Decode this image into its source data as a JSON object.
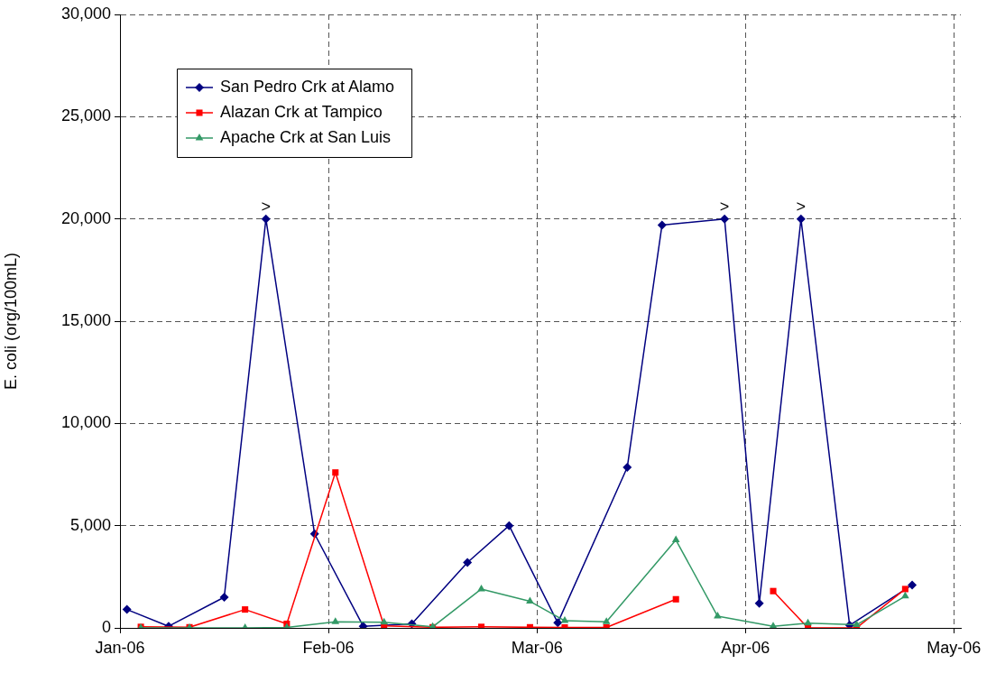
{
  "chart_data": {
    "type": "line",
    "ylabel": "E. coli (org/100mL)",
    "xlim": [
      "2006-01-02",
      "2006-05-03"
    ],
    "xticks": [
      {
        "value": "2006-01-02",
        "label": "Jan-06"
      },
      {
        "value": "2006-02-01",
        "label": "Feb-06"
      },
      {
        "value": "2006-03-03",
        "label": "Mar-06"
      },
      {
        "value": "2006-04-02",
        "label": "Apr-06"
      },
      {
        "value": "2006-05-02",
        "label": "May-06"
      }
    ],
    "ylim": [
      0,
      30000
    ],
    "yticks": [
      0,
      {
        "value": 5000,
        "label": "5,000"
      },
      {
        "value": 10000,
        "label": "10,000"
      },
      {
        "value": 15000,
        "label": "15,000"
      },
      {
        "value": 20000,
        "label": "20,000"
      },
      {
        "value": 25000,
        "label": "25,000"
      },
      {
        "value": 30000,
        "label": "30,000"
      }
    ],
    "grid": true,
    "legend": "top left",
    "line_style": "solid",
    "series": [
      {
        "name": "San Pedro Crk at Alamo",
        "color": "#000080",
        "marker": "diamond",
        "x": [
          "2006-01-03",
          "2006-01-09",
          "2006-01-17",
          "2006-01-23",
          "2006-01-30",
          "2006-02-06",
          "2006-02-13",
          "2006-02-21",
          "2006-02-27",
          "2006-03-06",
          "2006-03-16",
          "2006-03-21",
          "2006-03-30",
          "2006-04-04",
          "2006-04-10",
          "2006-04-17",
          "2006-04-26"
        ],
        "values": [
          900,
          80,
          1500,
          20000,
          4600,
          80,
          200,
          3200,
          5000,
          250,
          7850,
          19700,
          20000,
          1200,
          20000,
          130,
          2100
        ]
      },
      {
        "name": "Alazan Crk at Tampico",
        "color": "#ff0000",
        "marker": "square",
        "x": [
          "2006-01-05",
          "2006-01-12",
          "2006-01-20",
          "2006-01-26",
          "2006-02-02",
          "2006-02-09",
          "2006-02-16",
          "2006-02-23",
          "2006-03-02",
          "2006-03-07",
          "2006-03-13",
          "2006-03-23",
          "2006-03-29",
          "2006-04-06",
          "2006-04-11",
          "2006-04-18",
          "2006-04-25"
        ],
        "values": [
          50,
          30,
          900,
          200,
          7600,
          100,
          30,
          50,
          30,
          20,
          20,
          1400,
          null,
          1800,
          0,
          0,
          1900
        ]
      },
      {
        "name": "Apache Crk at San Luis",
        "color": "#339966",
        "marker": "triangle",
        "x": [
          "2006-01-05",
          "2006-01-12",
          "2006-01-20",
          "2006-01-26",
          "2006-02-02",
          "2006-02-09",
          "2006-02-16",
          "2006-02-23",
          "2006-03-02",
          "2006-03-07",
          "2006-03-13",
          "2006-03-23",
          "2006-03-29",
          "2006-04-06",
          "2006-04-11",
          "2006-04-18",
          "2006-04-25"
        ],
        "values": [
          0,
          0,
          0,
          20,
          300,
          280,
          50,
          1900,
          1300,
          350,
          300,
          4300,
          570,
          80,
          230,
          150,
          1550
        ]
      }
    ],
    "annotations": [
      {
        "text": ">",
        "x": "2006-01-23",
        "y": 20000
      },
      {
        "text": ">",
        "x": "2006-03-30",
        "y": 20000
      },
      {
        "text": ">",
        "x": "2006-04-10",
        "y": 20000
      }
    ]
  }
}
